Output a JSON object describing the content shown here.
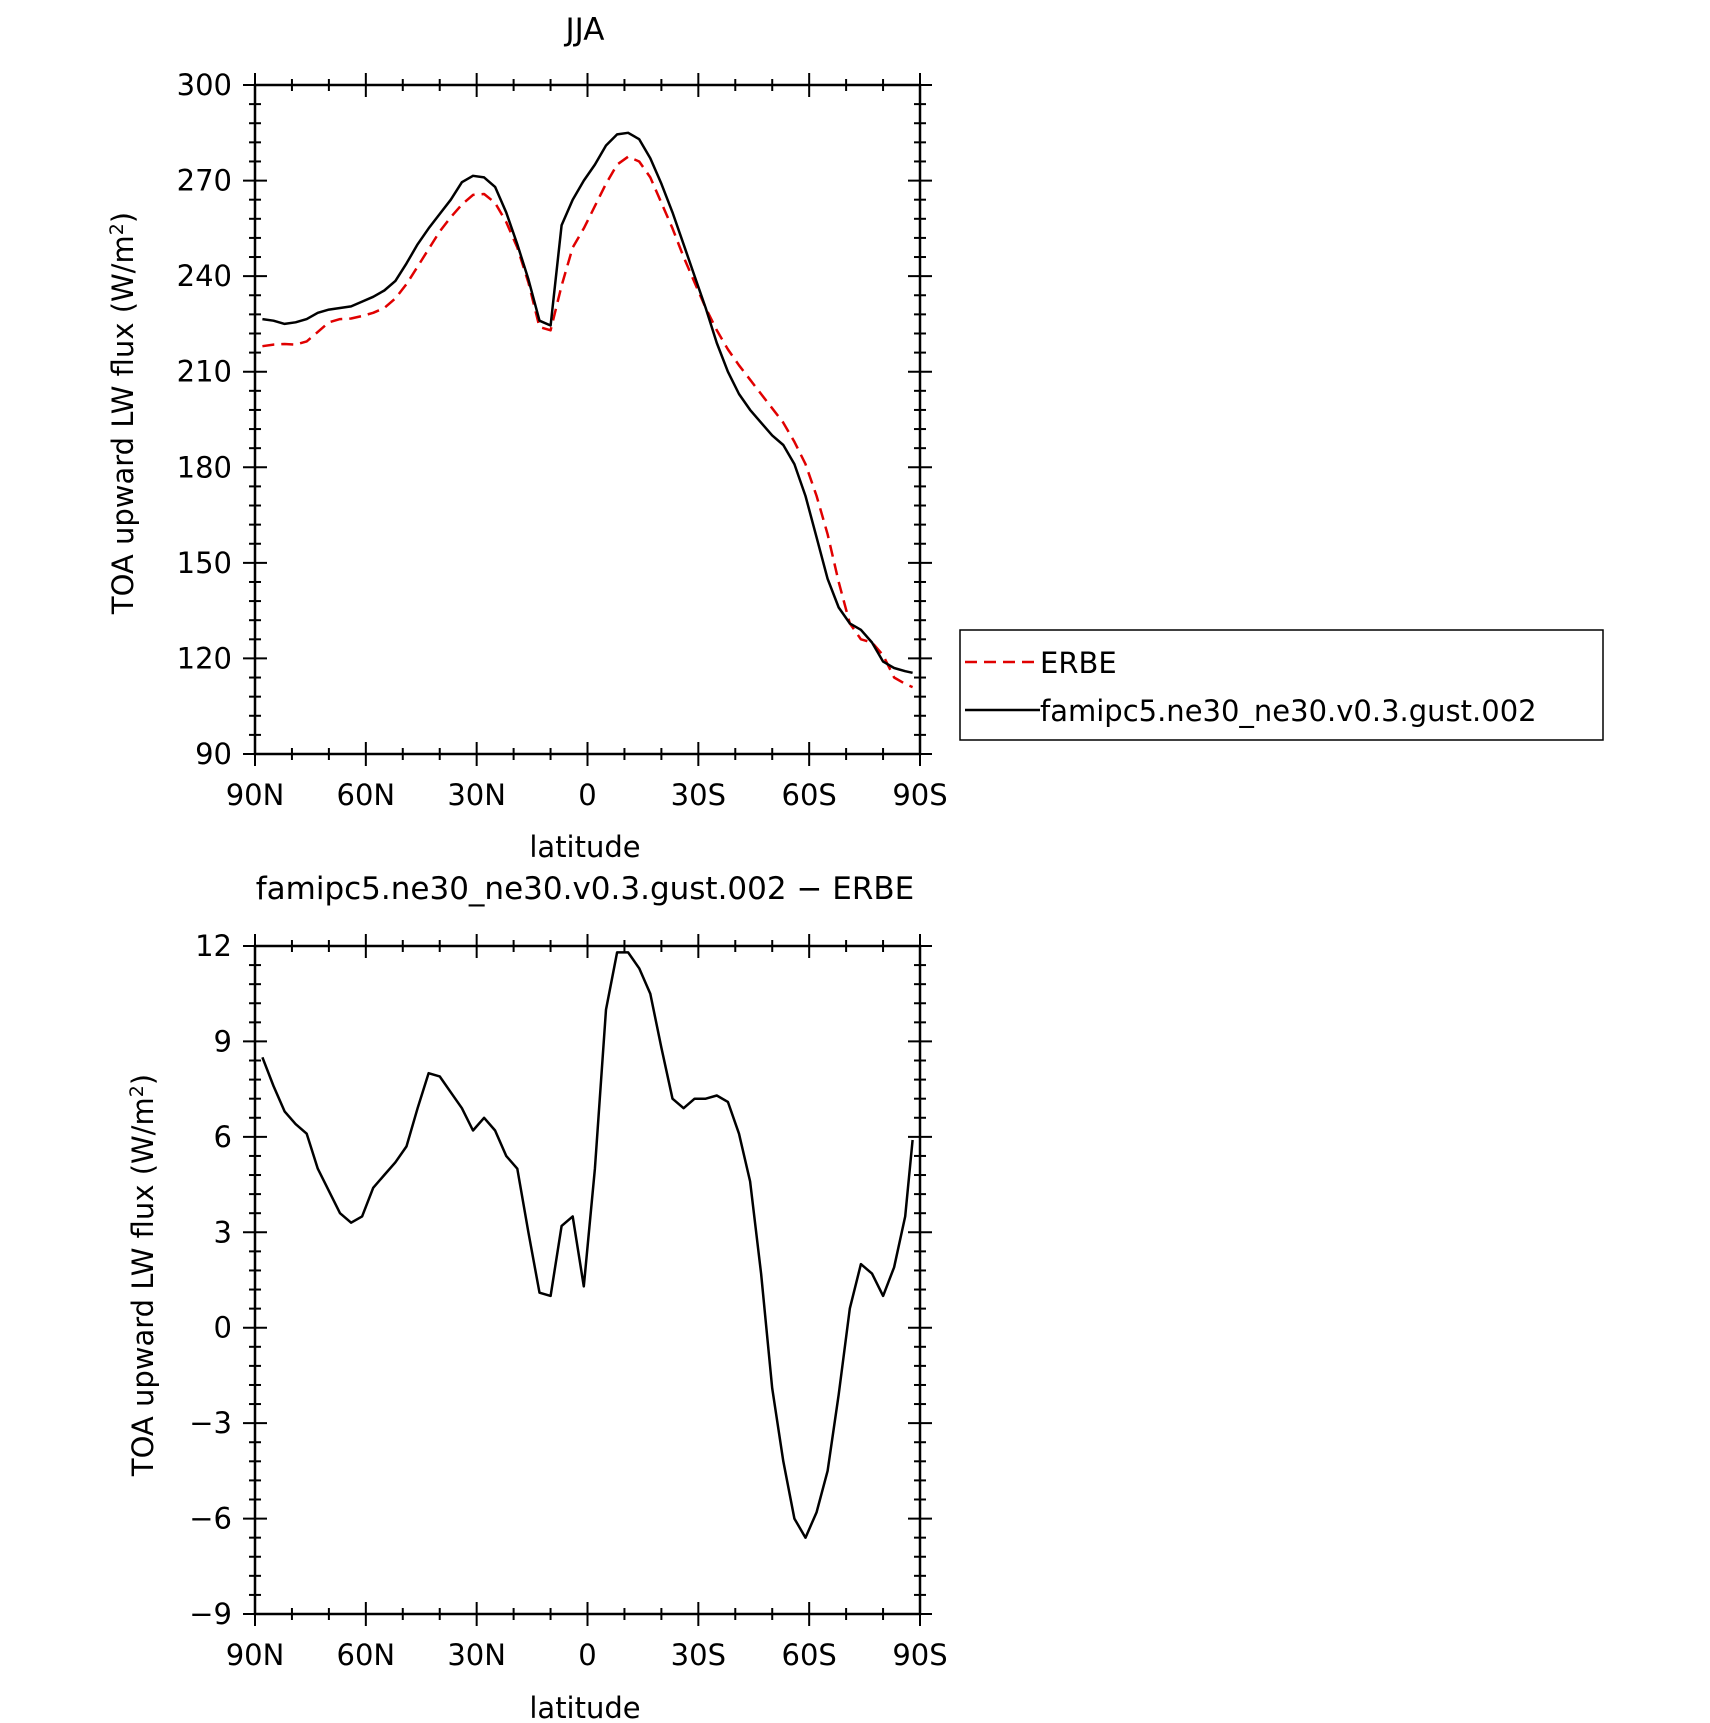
{
  "chart_data": [
    {
      "type": "line",
      "title": "JJA",
      "xlabel": "latitude",
      "ylabel": "TOA upward LW flux (W/m",
      "ylabel_sup": "2",
      "ylabel_close": ")",
      "xlim": [
        90,
        -90
      ],
      "ylim": [
        90,
        300
      ],
      "xticks": [
        90,
        60,
        30,
        0,
        -30,
        -60,
        -90
      ],
      "xtick_labels": [
        "90N",
        "60N",
        "30N",
        "0",
        "30S",
        "60S",
        "90S"
      ],
      "yticks": [
        90,
        120,
        150,
        180,
        210,
        240,
        270,
        300
      ],
      "ytick_labels": [
        "90",
        "120",
        "150",
        "180",
        "210",
        "240",
        "270",
        "300"
      ],
      "grid": false,
      "legend_position": "right",
      "series": [
        {
          "name": "ERBE",
          "color": "#e00000",
          "dash": "dashed",
          "x": [
            88,
            85,
            82,
            79,
            76,
            73,
            70,
            67,
            64,
            61,
            58,
            55,
            52,
            49,
            46,
            43,
            40,
            37,
            34,
            31,
            28,
            25,
            22,
            19,
            16,
            13,
            10,
            7,
            4,
            1,
            -2,
            -5,
            -8,
            -11,
            -14,
            -17,
            -20,
            -23,
            -26,
            -29,
            -32,
            -35,
            -38,
            -41,
            -44,
            -47,
            -50,
            -53,
            -56,
            -59,
            -62,
            -65,
            -68,
            -71,
            -74,
            -77,
            -80,
            -83,
            -86,
            -88
          ],
          "y": [
            218,
            218.5,
            218.7,
            218.5,
            219.5,
            222.5,
            225.5,
            226.5,
            226.7,
            227.5,
            228.5,
            230,
            233,
            237.5,
            243,
            248.5,
            254,
            258.5,
            262.5,
            265.5,
            265.8,
            263,
            257,
            249,
            238,
            224,
            223,
            237,
            249,
            255,
            262,
            269,
            275,
            277.5,
            276,
            271,
            263,
            255,
            246,
            238,
            230,
            223,
            217,
            212,
            207.5,
            203,
            198.5,
            194,
            188,
            181,
            171,
            159,
            144,
            131,
            126,
            125,
            121,
            114,
            112,
            111
          ]
        },
        {
          "name": "famipc5.ne30_ne30.v0.3.gust.002",
          "color": "#000000",
          "dash": "solid",
          "x": [
            88,
            85,
            82,
            79,
            76,
            73,
            70,
            67,
            64,
            61,
            58,
            55,
            52,
            49,
            46,
            43,
            40,
            37,
            34,
            31,
            28,
            25,
            22,
            19,
            16,
            13,
            10,
            7,
            4,
            1,
            -2,
            -5,
            -8,
            -11,
            -14,
            -17,
            -20,
            -23,
            -26,
            -29,
            -32,
            -35,
            -38,
            -41,
            -44,
            -47,
            -50,
            -53,
            -56,
            -59,
            -62,
            -65,
            -68,
            -71,
            -74,
            -77,
            -80,
            -83,
            -86,
            -88
          ],
          "y": [
            226.5,
            226,
            225,
            225.5,
            226.5,
            228.5,
            229.5,
            230,
            230.5,
            232,
            233.5,
            235.5,
            238.5,
            244,
            250,
            255,
            259.5,
            264,
            269.5,
            271.5,
            271,
            268,
            260,
            250,
            239,
            226,
            224.5,
            256,
            264,
            270,
            275,
            281,
            284.5,
            285,
            283,
            277,
            269,
            260,
            250,
            240,
            230,
            219,
            210,
            203,
            198,
            194,
            190,
            187,
            181,
            171,
            158,
            145,
            136,
            131,
            129,
            125,
            119,
            117,
            116,
            115.5
          ]
        }
      ]
    },
    {
      "type": "line",
      "title": "famipc5.ne30_ne30.v0.3.gust.002 − ERBE",
      "xlabel": "latitude",
      "ylabel": "TOA upward LW flux (W/m",
      "ylabel_sup": "2",
      "ylabel_close": ")",
      "xlim": [
        90,
        -90
      ],
      "ylim": [
        -9,
        12
      ],
      "xticks": [
        90,
        60,
        30,
        0,
        -30,
        -60,
        -90
      ],
      "xtick_labels": [
        "90N",
        "60N",
        "30N",
        "0",
        "30S",
        "60S",
        "90S"
      ],
      "yticks": [
        -9,
        -6,
        -3,
        0,
        3,
        6,
        9,
        12
      ],
      "ytick_labels": [
        "−9",
        "−6",
        "−3",
        "0",
        "3",
        "6",
        "9",
        "12"
      ],
      "grid": false,
      "series": [
        {
          "color": "#000000",
          "dash": "solid",
          "x": [
            88,
            85,
            82,
            79,
            76,
            73,
            70,
            67,
            64,
            61,
            58,
            55,
            52,
            49,
            46,
            43,
            40,
            37,
            34,
            31,
            28,
            25,
            22,
            19,
            16,
            13,
            10,
            7,
            4,
            1,
            -2,
            -5,
            -8,
            -11,
            -14,
            -17,
            -20,
            -23,
            -26,
            -29,
            -32,
            -35,
            -38,
            -41,
            -44,
            -47,
            -50,
            -53,
            -56,
            -59,
            -62,
            -65,
            -68,
            -71,
            -74,
            -77,
            -80,
            -83,
            -86,
            -88
          ],
          "y": [
            8.5,
            7.6,
            6.8,
            6.4,
            6.1,
            5,
            4.3,
            3.6,
            3.3,
            3.5,
            4.4,
            4.8,
            5.2,
            5.7,
            6.9,
            8,
            7.9,
            7.4,
            6.9,
            6.2,
            6.6,
            6.2,
            5.4,
            5,
            3,
            1.1,
            1,
            3.2,
            3.5,
            1.3,
            5,
            10,
            11.8,
            11.8,
            11.3,
            10.5,
            8.8,
            7.2,
            6.9,
            7.2,
            7.2,
            7.3,
            7.1,
            6.1,
            4.6,
            1.7,
            -1.9,
            -4.2,
            -6,
            -6.6,
            -5.8,
            -4.5,
            -2.1,
            0.6,
            2,
            1.7,
            1,
            1.9,
            3.5,
            5.9
          ]
        }
      ]
    }
  ]
}
